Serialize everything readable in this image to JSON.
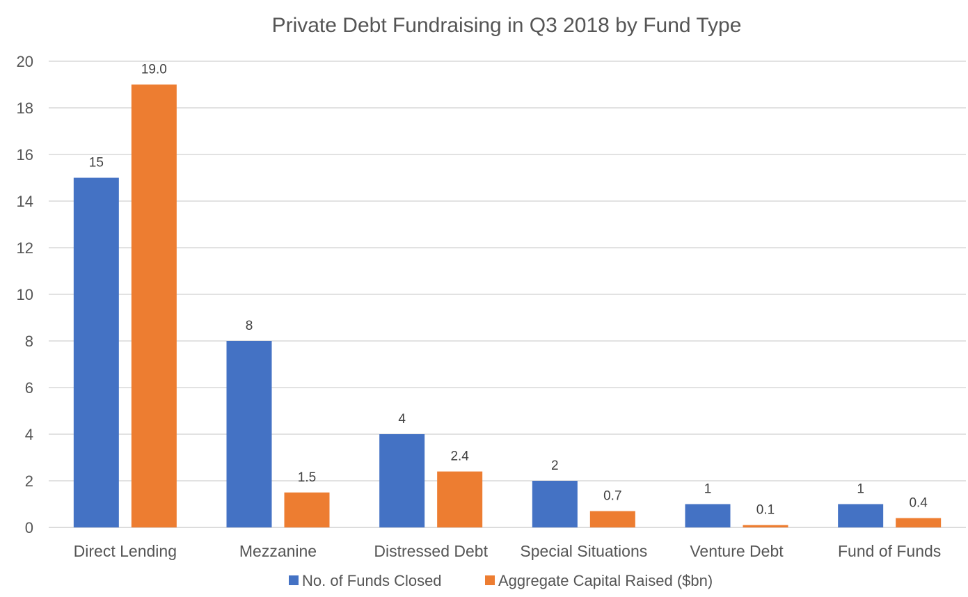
{
  "chart_data": {
    "type": "bar",
    "title": "Private Debt Fundraising in Q3 2018 by Fund Type",
    "categories": [
      "Direct Lending",
      "Mezzanine",
      "Distressed Debt",
      "Special Situations",
      "Venture Debt",
      "Fund of Funds"
    ],
    "series": [
      {
        "name": "No. of Funds Closed",
        "color": "#4472C4",
        "values": [
          15,
          8,
          4,
          2,
          1,
          1
        ],
        "labels": [
          "15",
          "8",
          "4",
          "2",
          "1",
          "1"
        ]
      },
      {
        "name": "Aggregate Capital Raised ($bn)",
        "color": "#ED7D31",
        "values": [
          19.0,
          1.5,
          2.4,
          0.7,
          0.1,
          0.4
        ],
        "labels": [
          "19.0",
          "1.5",
          "2.4",
          "0.7",
          "0.1",
          "0.4"
        ]
      }
    ],
    "y_ticks": [
      "0",
      "2",
      "4",
      "6",
      "8",
      "10",
      "12",
      "14",
      "16",
      "18",
      "20"
    ],
    "ylim": [
      0,
      20
    ],
    "grid": true,
    "legend_position": "bottom"
  }
}
